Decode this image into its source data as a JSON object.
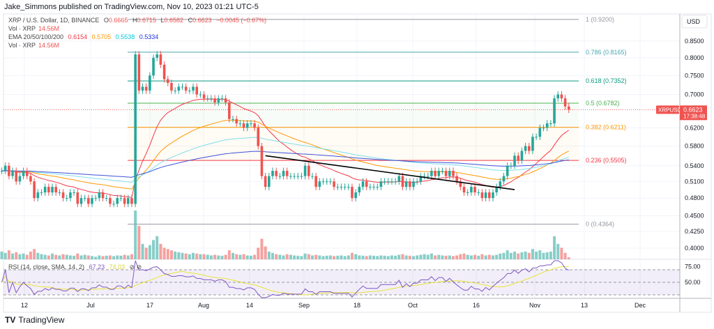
{
  "header": {
    "published": "Jake_Simmons published on TradingView.com, Nov 10, 2023 01:21 UTC-5"
  },
  "legend": {
    "symbol": "XRP / U.S. Dollar, 1D, BINANCE",
    "o_label": "O",
    "o": "0.6665",
    "h_label": "H",
    "h": "0.6715",
    "l_label": "L",
    "l": "0.6582",
    "c_label": "C",
    "c": "0.6623",
    "change": "−0.0045 (−0.67%)",
    "vol_label": "Vol · XRP",
    "vol": "14.56M",
    "ema_label": "EMA 20/50/100/200",
    "ema20": "0.6154",
    "ema50": "0.5705",
    "ema100": "0.5538",
    "ema200": "0.5334",
    "vol2_label": "Vol · XRP",
    "vol2": "14.56M",
    "rsi_label": "RSI (14, close, SMA, 14, 2)",
    "rsi": "67.23",
    "rsi_sma": "74.03"
  },
  "price_axis": {
    "currency": "USD",
    "ticks": [
      "0.8500",
      "0.8000",
      "0.7500",
      "0.7000",
      "0.6200",
      "0.5800",
      "0.5400",
      "0.5100",
      "0.4800",
      "0.4500",
      "0.4250",
      "0.4000"
    ]
  },
  "rsi_axis": {
    "ticks": [
      "75.00",
      "50.00"
    ]
  },
  "time_axis": {
    "ticks": [
      "12",
      "Jul",
      "17",
      "Aug",
      "14",
      "Sep",
      "18",
      "Oct",
      "16",
      "Nov",
      "13",
      "Dec"
    ]
  },
  "price_tag": {
    "symbol": "XRPUSD",
    "price": "0.6623",
    "countdown": "17:38:48"
  },
  "footer": {
    "brand": "TradingView"
  },
  "colors": {
    "up": "#26a69a",
    "down": "#ef5350",
    "ema20": "#f23645",
    "ema50": "#ff9800",
    "ema100": "#80deea",
    "ema200": "#3f51d8",
    "rsi": "#7e57c2",
    "rsi_sma": "#e8e337"
  },
  "chart_data": {
    "type": "candlestick",
    "scale": "log",
    "ylim": [
      0.39,
      0.93
    ],
    "start_date": "2023-06-06",
    "end_date": "2023-11-10",
    "closes": [
      0.53,
      0.54,
      0.52,
      0.53,
      0.51,
      0.52,
      0.53,
      0.52,
      0.51,
      0.48,
      0.49,
      0.49,
      0.5,
      0.49,
      0.5,
      0.49,
      0.49,
      0.48,
      0.48,
      0.49,
      0.49,
      0.47,
      0.48,
      0.48,
      0.47,
      0.48,
      0.48,
      0.49,
      0.48,
      0.48,
      0.47,
      0.47,
      0.48,
      0.48,
      0.47,
      0.48,
      0.47,
      0.81,
      0.71,
      0.72,
      0.71,
      0.75,
      0.8,
      0.81,
      0.78,
      0.74,
      0.73,
      0.71,
      0.71,
      0.72,
      0.72,
      0.71,
      0.71,
      0.72,
      0.7,
      0.7,
      0.69,
      0.69,
      0.69,
      0.68,
      0.69,
      0.69,
      0.68,
      0.64,
      0.64,
      0.63,
      0.63,
      0.62,
      0.63,
      0.63,
      0.62,
      0.58,
      0.52,
      0.5,
      0.52,
      0.53,
      0.52,
      0.52,
      0.53,
      0.52,
      0.52,
      0.52,
      0.52,
      0.52,
      0.54,
      0.52,
      0.52,
      0.5,
      0.51,
      0.51,
      0.51,
      0.51,
      0.5,
      0.5,
      0.5,
      0.5,
      0.5,
      0.48,
      0.49,
      0.5,
      0.51,
      0.5,
      0.5,
      0.5,
      0.5,
      0.51,
      0.51,
      0.51,
      0.51,
      0.51,
      0.52,
      0.5,
      0.51,
      0.5,
      0.51,
      0.51,
      0.52,
      0.52,
      0.52,
      0.53,
      0.52,
      0.53,
      0.53,
      0.52,
      0.53,
      0.52,
      0.51,
      0.5,
      0.49,
      0.49,
      0.5,
      0.49,
      0.49,
      0.48,
      0.49,
      0.48,
      0.49,
      0.5,
      0.51,
      0.52,
      0.54,
      0.54,
      0.56,
      0.55,
      0.57,
      0.58,
      0.57,
      0.6,
      0.6,
      0.62,
      0.62,
      0.63,
      0.63,
      0.69,
      0.7,
      0.69,
      0.67,
      0.6623
    ],
    "volume_millions": [
      60,
      50,
      70,
      45,
      55,
      40,
      45,
      35,
      60,
      80,
      50,
      40,
      35,
      30,
      45,
      35,
      30,
      40,
      35,
      30,
      28,
      45,
      30,
      35,
      30,
      25,
      20,
      30,
      25,
      28,
      30,
      25,
      30,
      28,
      35,
      30,
      40,
      380,
      260,
      120,
      90,
      110,
      150,
      180,
      120,
      90,
      80,
      70,
      60,
      55,
      50,
      45,
      40,
      50,
      45,
      40,
      40,
      35,
      30,
      35,
      30,
      28,
      35,
      70,
      50,
      40,
      35,
      40,
      30,
      28,
      35,
      90,
      160,
      100,
      60,
      50,
      40,
      35,
      30,
      40,
      35,
      30,
      28,
      25,
      45,
      40,
      30,
      35,
      30,
      25,
      28,
      30,
      25,
      28,
      30,
      25,
      30,
      50,
      40,
      30,
      28,
      25,
      30,
      28,
      25,
      30,
      28,
      25,
      30,
      28,
      35,
      40,
      30,
      28,
      25,
      30,
      35,
      40,
      35,
      45,
      30,
      35,
      30,
      28,
      30,
      25,
      30,
      40,
      45,
      35,
      30,
      35,
      28,
      40,
      30,
      35,
      30,
      35,
      45,
      50,
      70,
      50,
      60,
      45,
      55,
      60,
      50,
      80,
      60,
      70,
      50,
      55,
      60,
      180,
      120,
      90,
      50,
      15
    ],
    "fibonacci": [
      {
        "level": "1",
        "price": 0.92,
        "label": "1 (0.9200)",
        "color": "#9598a1"
      },
      {
        "level": "0.786",
        "price": 0.8165,
        "label": "0.786 (0.8165)",
        "color": "#4ba5b0"
      },
      {
        "level": "0.618",
        "price": 0.7352,
        "label": "0.618 (0.7352)",
        "color": "#089981"
      },
      {
        "level": "0.5",
        "price": 0.6782,
        "label": "0.5 (0.6782)",
        "color": "#4caf50"
      },
      {
        "level": "0.382",
        "price": 0.6211,
        "label": "0.382 (0.6211)",
        "color": "#ff9800"
      },
      {
        "level": "0.236",
        "price": 0.5505,
        "label": "0.236 (0.5505)",
        "color": "#f23645"
      },
      {
        "level": "0",
        "price": 0.4364,
        "label": "0 (0.4364)",
        "color": "#9598a1"
      }
    ],
    "trendline": {
      "from": {
        "date": "2023-08-18",
        "price": 0.56
      },
      "to": {
        "date": "2023-10-26",
        "price": 0.495
      }
    },
    "rsi_levels": [
      70,
      50,
      30
    ]
  }
}
